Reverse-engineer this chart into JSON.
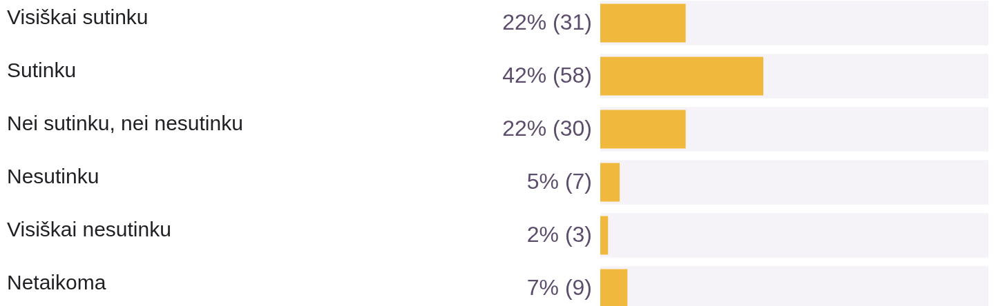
{
  "chart_data": {
    "type": "bar",
    "orientation": "horizontal",
    "categories": [
      "Visiškai sutinku",
      "Sutinku",
      "Nei sutinku, nei nesutinku",
      "Nesutinku",
      "Visiškai nesutinku",
      "Netaikoma"
    ],
    "series": [
      {
        "color": "#f0b93e",
        "values": [
          22,
          42,
          22,
          5,
          2,
          7
        ],
        "value_labels": [
          "22% (31)",
          "42% (58)",
          "22% (30)",
          "5% (7)",
          "2% (3)",
          "7% (9)"
        ]
      },
      {
        "color": "#f5f3f7",
        "values": [
          100,
          100,
          100,
          100,
          100,
          100
        ]
      }
    ],
    "tick_labels": "y",
    "grid": false
  }
}
